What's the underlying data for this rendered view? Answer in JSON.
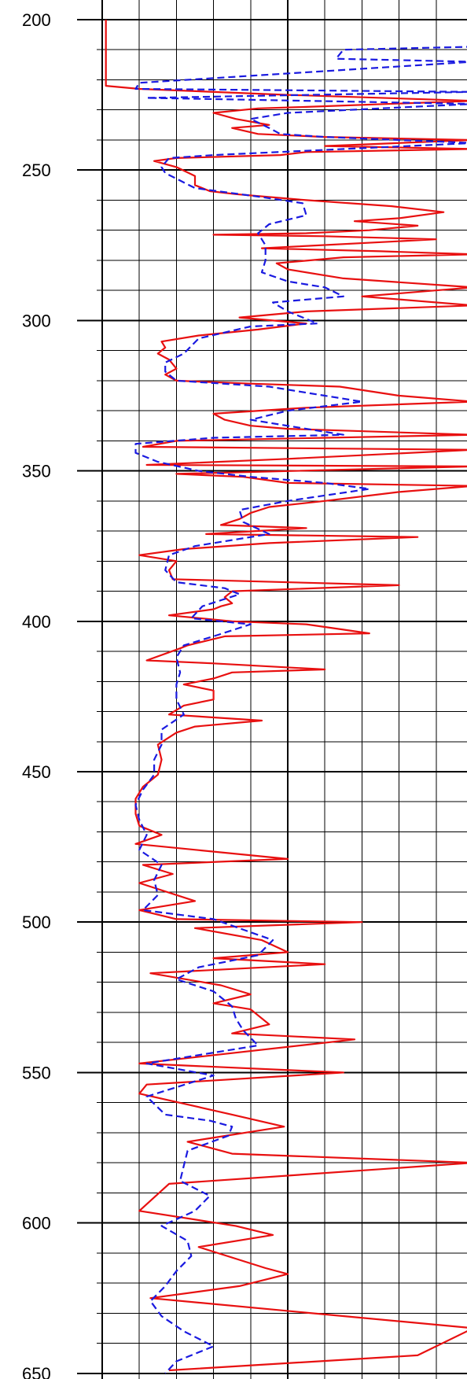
{
  "chart_data": {
    "type": "line",
    "orientation": "vertical-depth",
    "title": "",
    "xlabel": "",
    "ylabel": "",
    "ylim": [
      200,
      650
    ],
    "xlim": [
      0,
      10
    ],
    "y_inverted": true,
    "grid": true,
    "major_y_ticks": [
      200,
      250,
      300,
      350,
      400,
      450,
      500,
      550,
      600,
      650
    ],
    "tick_labels": [
      "200",
      "250",
      "300",
      "350",
      "400",
      "450",
      "500",
      "550",
      "600",
      "650"
    ],
    "colors": {
      "solid_series": "#e81010",
      "dashed_series": "#1a1ae0",
      "grid": "#000000",
      "background": "#ffffff"
    },
    "series": [
      {
        "style": "solid",
        "color": "#e81010",
        "points": [
          [
            0.1,
            200
          ],
          [
            0.1,
            212
          ],
          [
            0.1,
            222
          ],
          [
            1.0,
            223
          ],
          [
            5.0,
            225
          ],
          [
            10.0,
            227
          ],
          [
            5.5,
            229
          ],
          [
            4.2,
            229.5
          ],
          [
            3.0,
            231
          ],
          [
            3.6,
            233
          ],
          [
            4.5,
            235
          ],
          [
            3.5,
            236
          ],
          [
            4.2,
            238
          ],
          [
            6.0,
            239
          ],
          [
            10.0,
            240
          ],
          [
            6.0,
            242
          ],
          [
            10.0,
            243
          ],
          [
            5.5,
            244
          ],
          [
            4.8,
            245
          ],
          [
            2.0,
            246
          ],
          [
            1.4,
            247
          ],
          [
            2.0,
            249
          ],
          [
            2.5,
            252
          ],
          [
            2.5,
            255
          ],
          [
            2.9,
            257
          ],
          [
            3.6,
            258
          ],
          [
            5.5,
            260
          ],
          [
            7.8,
            262
          ],
          [
            9.2,
            264
          ],
          [
            8.0,
            266
          ],
          [
            6.8,
            267
          ],
          [
            8.5,
            268.5
          ],
          [
            7.2,
            270
          ],
          [
            5.5,
            271
          ],
          [
            3.0,
            271.5
          ],
          [
            6.0,
            272
          ],
          [
            9.0,
            273
          ],
          [
            4.3,
            276
          ],
          [
            7.5,
            277
          ],
          [
            10.0,
            278
          ],
          [
            6.5,
            279
          ],
          [
            4.7,
            281
          ],
          [
            5.0,
            283
          ],
          [
            6.5,
            286
          ],
          [
            10.0,
            289
          ],
          [
            7.0,
            292
          ],
          [
            10.0,
            295
          ],
          [
            5.5,
            297
          ],
          [
            3.7,
            299
          ],
          [
            5.5,
            301
          ],
          [
            4.2,
            303
          ],
          [
            2.6,
            305
          ],
          [
            1.6,
            307
          ],
          [
            1.7,
            309
          ],
          [
            1.5,
            311
          ],
          [
            1.8,
            313
          ],
          [
            2.0,
            316
          ],
          [
            1.7,
            318
          ],
          [
            2.0,
            320
          ],
          [
            4.0,
            321
          ],
          [
            6.4,
            322
          ],
          [
            8.0,
            325
          ],
          [
            10.0,
            327
          ],
          [
            5.5,
            329
          ],
          [
            3.0,
            331
          ],
          [
            3.3,
            333
          ],
          [
            4.0,
            335
          ],
          [
            5.0,
            336
          ],
          [
            10.0,
            338
          ],
          [
            2.0,
            340
          ],
          [
            1.1,
            342
          ],
          [
            10.0,
            343
          ],
          [
            5.0,
            346
          ],
          [
            1.2,
            348
          ],
          [
            10.0,
            348.5
          ],
          [
            2.0,
            351
          ],
          [
            3.8,
            352
          ],
          [
            5.0,
            354
          ],
          [
            10.0,
            355
          ],
          [
            8.0,
            357
          ],
          [
            6.0,
            360
          ],
          [
            4.5,
            362
          ],
          [
            4.0,
            364
          ],
          [
            3.7,
            366
          ],
          [
            3.2,
            368
          ],
          [
            5.5,
            369
          ],
          [
            2.8,
            371
          ],
          [
            8.5,
            372
          ],
          [
            4.5,
            374
          ],
          [
            2.2,
            376
          ],
          [
            1.0,
            378
          ],
          [
            2.0,
            380
          ],
          [
            1.8,
            383
          ],
          [
            1.9,
            386
          ],
          [
            8.0,
            388
          ],
          [
            3.5,
            390
          ],
          [
            3.3,
            392
          ],
          [
            3.5,
            394
          ],
          [
            3.2,
            395
          ],
          [
            3.0,
            396
          ],
          [
            1.8,
            398
          ],
          [
            3.5,
            400
          ],
          [
            5.5,
            401
          ],
          [
            7.2,
            404
          ],
          [
            3.3,
            405
          ],
          [
            2.3,
            408
          ],
          [
            2.1,
            409
          ],
          [
            1.2,
            413
          ],
          [
            3.0,
            414
          ],
          [
            6.0,
            416
          ],
          [
            3.5,
            417
          ],
          [
            3.0,
            419
          ],
          [
            2.2,
            421
          ],
          [
            3.0,
            423
          ],
          [
            3.0,
            426
          ],
          [
            2.2,
            428
          ],
          [
            1.8,
            431
          ],
          [
            4.3,
            433
          ],
          [
            2.5,
            435
          ],
          [
            2.0,
            437
          ],
          [
            1.5,
            441
          ],
          [
            1.6,
            446
          ],
          [
            1.5,
            451
          ],
          [
            1.1,
            455
          ],
          [
            0.9,
            459
          ],
          [
            0.9,
            464
          ],
          [
            1.0,
            468
          ],
          [
            1.6,
            471
          ],
          [
            0.9,
            474
          ],
          [
            5.0,
            479
          ],
          [
            1.1,
            481
          ],
          [
            1.9,
            484
          ],
          [
            1.0,
            487
          ],
          [
            2.5,
            493
          ],
          [
            1.0,
            496
          ],
          [
            2.0,
            499
          ],
          [
            7.0,
            500
          ],
          [
            2.5,
            502
          ],
          [
            4.3,
            506
          ],
          [
            5.0,
            510
          ],
          [
            3.0,
            512
          ],
          [
            6.0,
            514
          ],
          [
            1.3,
            517
          ],
          [
            3.2,
            521
          ],
          [
            4.0,
            524
          ],
          [
            3.0,
            527
          ],
          [
            4.0,
            529
          ],
          [
            4.5,
            534
          ],
          [
            3.5,
            537
          ],
          [
            6.8,
            539
          ],
          [
            1.0,
            547
          ],
          [
            6.5,
            550
          ],
          [
            1.2,
            554
          ],
          [
            1.0,
            557
          ],
          [
            3.5,
            564
          ],
          [
            4.9,
            568
          ],
          [
            2.3,
            573
          ],
          [
            3.5,
            577
          ],
          [
            10.0,
            580
          ],
          [
            1.8,
            587
          ],
          [
            1.0,
            596
          ],
          [
            3.6,
            601
          ],
          [
            4.6,
            604
          ],
          [
            2.6,
            608
          ],
          [
            4.4,
            615
          ],
          [
            5.0,
            617
          ],
          [
            3.7,
            621
          ],
          [
            1.3,
            625
          ],
          [
            10.0,
            635
          ],
          [
            8.5,
            644
          ],
          [
            1.8,
            649
          ]
        ]
      },
      {
        "style": "dashed",
        "color": "#1a1ae0",
        "points": [
          [
            10.0,
            209
          ],
          [
            6.5,
            210
          ],
          [
            6.3,
            213
          ],
          [
            10.0,
            214
          ],
          [
            1.0,
            221
          ],
          [
            0.9,
            223
          ],
          [
            10.0,
            224
          ],
          [
            1.2,
            226
          ],
          [
            10.0,
            228
          ],
          [
            5.0,
            231
          ],
          [
            4.0,
            233
          ],
          [
            4.5,
            236
          ],
          [
            4.8,
            238
          ],
          [
            6.0,
            239
          ],
          [
            10.0,
            241
          ],
          [
            3.0,
            245
          ],
          [
            1.8,
            246
          ],
          [
            1.6,
            249
          ],
          [
            1.7,
            251
          ],
          [
            2.5,
            256
          ],
          [
            4.3,
            259
          ],
          [
            5.4,
            261
          ],
          [
            5.5,
            265
          ],
          [
            4.5,
            268
          ],
          [
            4.2,
            271
          ],
          [
            4.4,
            275
          ],
          [
            4.4,
            280
          ],
          [
            4.3,
            284
          ],
          [
            5.0,
            287
          ],
          [
            6.0,
            289
          ],
          [
            6.5,
            292
          ],
          [
            4.6,
            294
          ],
          [
            5.0,
            297
          ],
          [
            5.8,
            301
          ],
          [
            4.0,
            302
          ],
          [
            2.6,
            306
          ],
          [
            2.2,
            311
          ],
          [
            1.7,
            314
          ],
          [
            1.7,
            317
          ],
          [
            2.0,
            320
          ],
          [
            4.5,
            322
          ],
          [
            6.0,
            325
          ],
          [
            7.0,
            327
          ],
          [
            5.0,
            330
          ],
          [
            4.0,
            333
          ],
          [
            5.5,
            336
          ],
          [
            6.5,
            338
          ],
          [
            3.0,
            339
          ],
          [
            0.9,
            341
          ],
          [
            0.9,
            344
          ],
          [
            1.5,
            347
          ],
          [
            2.6,
            350
          ],
          [
            4.0,
            352
          ],
          [
            6.0,
            354
          ],
          [
            7.2,
            356
          ],
          [
            5.0,
            360
          ],
          [
            3.7,
            363
          ],
          [
            3.8,
            367
          ],
          [
            4.5,
            371
          ],
          [
            2.5,
            375
          ],
          [
            1.8,
            378
          ],
          [
            1.7,
            383
          ],
          [
            2.0,
            387
          ],
          [
            3.3,
            389
          ],
          [
            3.7,
            391
          ],
          [
            2.7,
            395
          ],
          [
            2.4,
            399
          ],
          [
            4.0,
            401
          ],
          [
            3.0,
            405
          ],
          [
            2.2,
            408
          ],
          [
            2.0,
            412
          ],
          [
            2.1,
            417
          ],
          [
            2.0,
            421
          ],
          [
            2.0,
            426
          ],
          [
            2.2,
            431
          ],
          [
            1.6,
            436
          ],
          [
            1.6,
            441
          ],
          [
            1.4,
            446
          ],
          [
            1.4,
            451
          ],
          [
            1.1,
            456
          ],
          [
            0.9,
            461
          ],
          [
            1.0,
            466
          ],
          [
            1.2,
            471
          ],
          [
            1.0,
            476
          ],
          [
            1.6,
            481
          ],
          [
            1.4,
            486
          ],
          [
            1.5,
            491
          ],
          [
            1.1,
            496
          ],
          [
            3.0,
            499
          ],
          [
            4.6,
            506
          ],
          [
            4.2,
            511
          ],
          [
            2.6,
            515
          ],
          [
            2.0,
            519
          ],
          [
            3.0,
            523
          ],
          [
            3.5,
            528
          ],
          [
            3.6,
            532
          ],
          [
            3.8,
            536
          ],
          [
            4.2,
            541
          ],
          [
            1.2,
            547
          ],
          [
            3.0,
            551
          ],
          [
            1.2,
            558
          ],
          [
            1.7,
            564
          ],
          [
            2.9,
            566
          ],
          [
            3.5,
            568
          ],
          [
            3.4,
            571
          ],
          [
            2.3,
            576
          ],
          [
            2.2,
            581
          ],
          [
            2.1,
            586
          ],
          [
            2.9,
            591
          ],
          [
            2.5,
            596
          ],
          [
            1.6,
            601
          ],
          [
            2.3,
            606
          ],
          [
            2.4,
            611
          ],
          [
            2.0,
            616
          ],
          [
            1.7,
            621
          ],
          [
            1.3,
            626
          ],
          [
            1.6,
            631
          ],
          [
            2.2,
            636
          ],
          [
            3.0,
            641
          ],
          [
            2.0,
            646
          ],
          [
            1.7,
            650
          ]
        ]
      }
    ]
  }
}
